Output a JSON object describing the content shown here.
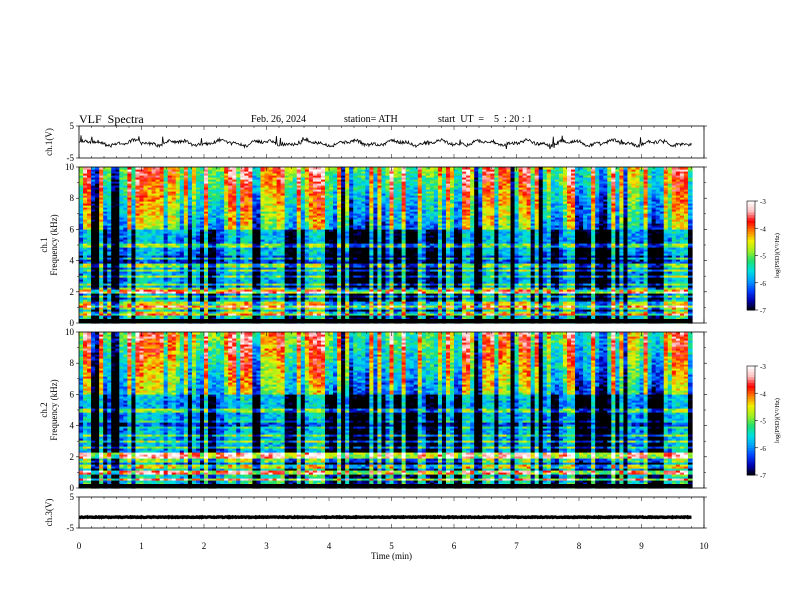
{
  "header": {
    "title": "VLF  Spectra",
    "date": "Feb. 26, 2024",
    "station": "station= ATH",
    "start": "start  UT  =    5  : 20 : 1"
  },
  "colorbar": {
    "label": "log(PSD)(V²/Hz)",
    "ticks": [
      "-3",
      "-4",
      "-5",
      "-6",
      "-7"
    ],
    "colors": [
      "#000000",
      "#0000b0",
      "#0040ff",
      "#00a0ff",
      "#00e0e0",
      "#20e070",
      "#a0f020",
      "#f0f000",
      "#ff8000",
      "#ff0000",
      "#ffc0c0",
      "#ffffff"
    ]
  },
  "chart_data": [
    {
      "type": "line",
      "name": "ch1-waveform",
      "ylabel": "ch.1(V)",
      "ylim": [
        -5,
        5
      ],
      "yticks": [
        "5",
        "-5"
      ],
      "xlim": [
        0,
        10
      ],
      "baseline": -0.3,
      "color": "#000000"
    },
    {
      "type": "heatmap",
      "name": "ch1-spectrogram",
      "ylabel": "ch.1 Frequency  (kHz)",
      "ylim": [
        0,
        10
      ],
      "yticks": [
        "10",
        "8",
        "6",
        "4",
        "2",
        "0"
      ],
      "xlim": [
        0,
        9.8
      ],
      "zlim": [
        -7,
        -3
      ],
      "bands_khz": [
        0.7,
        1.0,
        1.3,
        1.7,
        2.0,
        2.1,
        2.5,
        3.0,
        3.4,
        3.7,
        4.2,
        5.0
      ],
      "strong_lines_khz": [
        2.0,
        0.6,
        1.1,
        2.2
      ]
    },
    {
      "type": "heatmap",
      "name": "ch2-spectrogram",
      "ylabel": "ch.2 Frequency  (kHz)",
      "ylim": [
        0,
        10
      ],
      "yticks": [
        "10",
        "8",
        "6",
        "4",
        "2",
        "0"
      ],
      "xlim": [
        0,
        9.8
      ],
      "zlim": [
        -7,
        -3
      ],
      "bands_khz": [
        0.6,
        1.0,
        1.4,
        1.8,
        2.0,
        2.2,
        2.6,
        3.0,
        3.4,
        3.9,
        4.3,
        5.0
      ],
      "strong_lines_khz": [
        2.0,
        2.2,
        0.6,
        1.0
      ]
    },
    {
      "type": "line",
      "name": "ch3-waveform",
      "ylabel": "ch.3(V)",
      "ylim": [
        -5,
        5
      ],
      "yticks": [
        "5",
        "-5"
      ],
      "xlim": [
        0,
        10
      ],
      "baseline": -1.5,
      "color": "#000000"
    }
  ],
  "xaxis": {
    "label": "Time  (min)",
    "ticks": [
      "0",
      "1",
      "2",
      "3",
      "4",
      "5",
      "6",
      "7",
      "8",
      "9",
      "10"
    ]
  }
}
